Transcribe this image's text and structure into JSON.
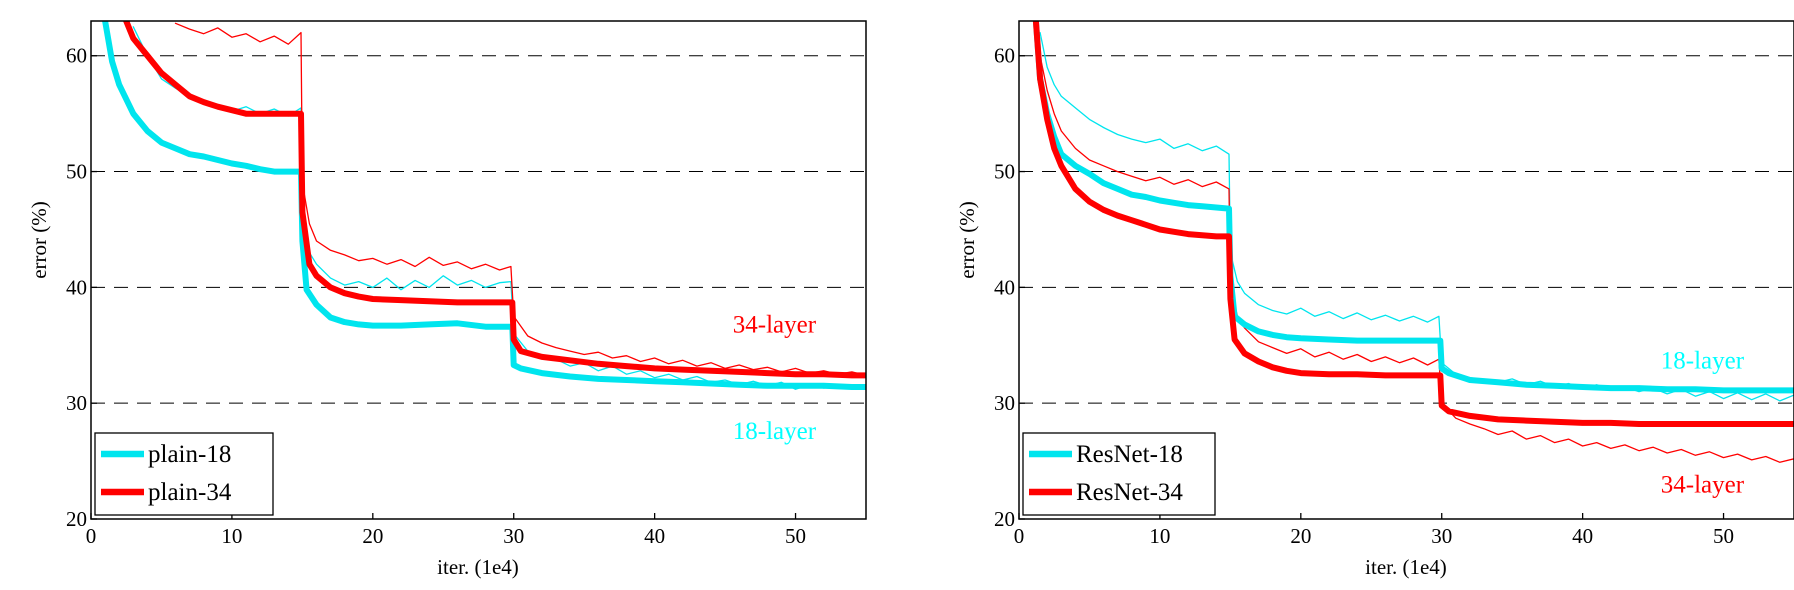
{
  "chart_data": [
    {
      "type": "line",
      "title": "",
      "xlabel": "iter. (1e4)",
      "ylabel": "error (%)",
      "xlim": [
        0,
        55
      ],
      "ylim": [
        20,
        63
      ],
      "xticks": [
        0,
        10,
        20,
        30,
        40,
        50
      ],
      "yticks": [
        20,
        30,
        40,
        50,
        60
      ],
      "grid": "horizontal dashed at 30, 40, 50, 60",
      "legend_position": "bottom-left",
      "legend": [
        "plain-18",
        "plain-34"
      ],
      "annotations": [
        {
          "text": "34-layer",
          "x": 48.5,
          "y": 36.1,
          "color": "#ff0000"
        },
        {
          "text": "18-layer",
          "x": 48.5,
          "y": 26.9,
          "color": "#00ffff"
        }
      ],
      "colors": {
        "18": "#00e5ee",
        "34": "#ff0000"
      },
      "series": [
        {
          "name": "plain-18",
          "kind": "train",
          "color": "#00e5ee",
          "x": [
            1,
            1.5,
            2,
            3,
            4,
            5,
            6,
            7,
            8,
            9,
            10,
            11,
            12,
            13,
            14,
            14.9,
            15,
            15.3,
            16,
            17,
            18,
            19,
            20,
            22,
            24,
            26,
            28,
            29.5,
            29.9,
            30,
            30.5,
            32,
            34,
            36,
            38,
            40,
            42,
            44,
            46,
            48,
            50,
            52,
            54,
            55
          ],
          "y": [
            63,
            59.5,
            57.5,
            55,
            53.5,
            52.5,
            52,
            51.5,
            51.3,
            51,
            50.7,
            50.5,
            50.2,
            50,
            50,
            50,
            44,
            39.8,
            38.5,
            37.4,
            37,
            36.8,
            36.7,
            36.7,
            36.8,
            36.9,
            36.6,
            36.6,
            36.6,
            33.3,
            33,
            32.6,
            32.3,
            32.1,
            32,
            31.9,
            31.8,
            31.7,
            31.6,
            31.5,
            31.5,
            31.5,
            31.4,
            31.4
          ]
        },
        {
          "name": "plain-34",
          "kind": "train",
          "color": "#ff0000",
          "x": [
            2.5,
            3,
            4,
            5,
            6,
            7,
            8,
            9,
            10,
            11,
            12,
            13,
            14,
            14.9,
            15,
            15.5,
            16,
            17,
            18,
            19,
            20,
            22,
            24,
            26,
            28,
            29.5,
            29.9,
            30,
            30.5,
            32,
            34,
            36,
            38,
            40,
            42,
            44,
            46,
            48,
            50,
            52,
            54,
            55
          ],
          "y": [
            63,
            61.5,
            60,
            58.5,
            57.5,
            56.5,
            56,
            55.6,
            55.3,
            55,
            55,
            55,
            55,
            55,
            46.5,
            42,
            41,
            40,
            39.5,
            39.2,
            39,
            38.9,
            38.8,
            38.7,
            38.7,
            38.7,
            38.7,
            35.5,
            34.5,
            34,
            33.7,
            33.4,
            33.2,
            33,
            32.9,
            32.8,
            32.7,
            32.6,
            32.5,
            32.5,
            32.4,
            32.4
          ]
        },
        {
          "name": "plain-18 (val)",
          "kind": "val",
          "color": "#00e5ee",
          "x": [
            3,
            4,
            5,
            6,
            7,
            8,
            9,
            10,
            11,
            12,
            13,
            14,
            14.9,
            15,
            15.5,
            16,
            17,
            18,
            19,
            20,
            21,
            22,
            23,
            24,
            25,
            26,
            27,
            28,
            29,
            29.8,
            30,
            31,
            32,
            33,
            34,
            35,
            36,
            37,
            38,
            39,
            40,
            41,
            42,
            43,
            44,
            45,
            46,
            47,
            48,
            49,
            50,
            51,
            52,
            53,
            54,
            55
          ],
          "y": [
            62.5,
            60,
            58,
            57.2,
            56.5,
            56,
            55.6,
            55.2,
            55.6,
            55,
            55.4,
            54.8,
            55.5,
            47,
            43,
            42,
            40.8,
            40.2,
            40.5,
            40,
            40.8,
            39.8,
            40.6,
            40,
            41,
            40.2,
            40.6,
            40,
            40.4,
            40.5,
            36,
            34.5,
            34,
            33.8,
            33.2,
            33.5,
            32.8,
            33.2,
            32.5,
            32.8,
            32.2,
            32.5,
            32,
            32.3,
            31.8,
            32,
            31.6,
            31.9,
            31.5,
            31.8,
            31.2,
            31.6,
            31.3,
            31.5,
            31.2,
            31.4
          ]
        },
        {
          "name": "plain-34 (val)",
          "kind": "val",
          "color": "#ff0000",
          "x": [
            6,
            7,
            8,
            9,
            10,
            11,
            12,
            13,
            14,
            14.9,
            15,
            15.5,
            16,
            17,
            18,
            19,
            20,
            21,
            22,
            23,
            24,
            25,
            26,
            27,
            28,
            29,
            29.8,
            30,
            31,
            32,
            33,
            34,
            35,
            36,
            37,
            38,
            39,
            40,
            41,
            42,
            43,
            44,
            45,
            46,
            47,
            48,
            49,
            50,
            51,
            52,
            53,
            54,
            55
          ],
          "y": [
            62.8,
            62.3,
            61.9,
            62.4,
            61.6,
            61.9,
            61.2,
            61.7,
            61,
            62,
            49,
            45.5,
            44,
            43.2,
            42.8,
            42.3,
            42.5,
            42,
            42.4,
            41.8,
            42.6,
            41.9,
            42.2,
            41.6,
            42,
            41.5,
            41.8,
            37.5,
            35.8,
            35.2,
            34.8,
            34.5,
            34.2,
            34.4,
            33.9,
            34.1,
            33.6,
            33.9,
            33.4,
            33.7,
            33.2,
            33.5,
            33,
            33.3,
            32.9,
            33.1,
            32.7,
            33,
            32.6,
            32.8,
            32.5,
            32.7,
            32.4
          ]
        }
      ]
    },
    {
      "type": "line",
      "title": "",
      "xlabel": "iter. (1e4)",
      "ylabel": "error (%)",
      "xlim": [
        0,
        55
      ],
      "ylim": [
        20,
        63
      ],
      "xticks": [
        0,
        10,
        20,
        30,
        40,
        50
      ],
      "yticks": [
        20,
        30,
        40,
        50,
        60
      ],
      "grid": "horizontal dashed at 30, 40, 50, 60",
      "legend_position": "bottom-left",
      "legend": [
        "ResNet-18",
        "ResNet-34"
      ],
      "annotations": [
        {
          "text": "18-layer",
          "x": 48.5,
          "y": 33.0,
          "color": "#00ffff"
        },
        {
          "text": "34-layer",
          "x": 48.5,
          "y": 22.3,
          "color": "#ff0000"
        }
      ],
      "colors": {
        "18": "#00e5ee",
        "34": "#ff0000"
      },
      "series": [
        {
          "name": "ResNet-18",
          "kind": "train",
          "color": "#00e5ee",
          "x": [
            1.2,
            1.5,
            2,
            2.5,
            3,
            4,
            5,
            6,
            7,
            8,
            9,
            10,
            11,
            12,
            13,
            14,
            14.9,
            15,
            15.3,
            16,
            17,
            18,
            19,
            20,
            22,
            24,
            26,
            28,
            29.5,
            29.9,
            30,
            30.5,
            32,
            34,
            36,
            38,
            40,
            42,
            44,
            46,
            48,
            50,
            52,
            54,
            55
          ],
          "y": [
            63,
            58,
            55,
            53,
            51.5,
            50.5,
            49.8,
            49,
            48.5,
            48,
            47.8,
            47.5,
            47.3,
            47.1,
            47,
            46.9,
            46.8,
            41,
            37.5,
            36.8,
            36.2,
            35.9,
            35.7,
            35.6,
            35.5,
            35.4,
            35.4,
            35.4,
            35.4,
            35.4,
            33,
            32.6,
            32,
            31.8,
            31.6,
            31.5,
            31.4,
            31.3,
            31.3,
            31.2,
            31.2,
            31.1,
            31.1,
            31.1,
            31.1
          ]
        },
        {
          "name": "ResNet-34",
          "kind": "train",
          "color": "#ff0000",
          "x": [
            1.2,
            1.5,
            2,
            2.5,
            3,
            4,
            5,
            6,
            7,
            8,
            9,
            10,
            11,
            12,
            13,
            14,
            14.9,
            15,
            15.3,
            16,
            17,
            18,
            19,
            20,
            22,
            24,
            26,
            28,
            29.5,
            29.9,
            30,
            30.5,
            32,
            34,
            36,
            38,
            40,
            42,
            44,
            46,
            48,
            50,
            52,
            54,
            55
          ],
          "y": [
            63,
            58,
            54.5,
            52,
            50.5,
            48.5,
            47.4,
            46.7,
            46.2,
            45.8,
            45.4,
            45,
            44.8,
            44.6,
            44.5,
            44.4,
            44.4,
            39,
            35.5,
            34.3,
            33.6,
            33.1,
            32.8,
            32.6,
            32.5,
            32.5,
            32.4,
            32.4,
            32.4,
            32.4,
            29.8,
            29.3,
            28.9,
            28.6,
            28.5,
            28.4,
            28.3,
            28.3,
            28.2,
            28.2,
            28.2,
            28.2,
            28.2,
            28.2,
            28.2
          ]
        },
        {
          "name": "ResNet-18 (val)",
          "kind": "val",
          "color": "#00e5ee",
          "x": [
            1.5,
            2,
            2.5,
            3,
            4,
            5,
            6,
            7,
            8,
            9,
            10,
            11,
            12,
            13,
            14,
            14.9,
            15,
            15.5,
            16,
            17,
            18,
            19,
            20,
            21,
            22,
            23,
            24,
            25,
            26,
            27,
            28,
            29,
            29.8,
            30,
            31,
            32,
            33,
            34,
            35,
            36,
            37,
            38,
            39,
            40,
            41,
            42,
            43,
            44,
            45,
            46,
            47,
            48,
            49,
            50,
            51,
            52,
            53,
            54,
            55
          ],
          "y": [
            62,
            59,
            57.5,
            56.5,
            55.5,
            54.5,
            53.8,
            53.2,
            52.8,
            52.5,
            52.8,
            52,
            52.4,
            51.8,
            52.2,
            51.5,
            43,
            40.5,
            39.5,
            38.5,
            38,
            37.7,
            38.2,
            37.5,
            37.9,
            37.3,
            37.8,
            37.2,
            37.6,
            37.1,
            37.5,
            37,
            37.5,
            33.5,
            32.5,
            32.2,
            32,
            31.8,
            32.1,
            31.6,
            31.9,
            31.4,
            31.7,
            31.3,
            31.6,
            31.1,
            31.4,
            31,
            31.3,
            30.8,
            31.2,
            30.6,
            31,
            30.4,
            30.9,
            30.3,
            30.8,
            30.2,
            30.7
          ]
        },
        {
          "name": "ResNet-34 (val)",
          "kind": "val",
          "color": "#ff0000",
          "x": [
            1.5,
            2,
            2.5,
            3,
            4,
            5,
            6,
            7,
            8,
            9,
            10,
            11,
            12,
            13,
            14,
            14.9,
            15,
            15.5,
            16,
            17,
            18,
            19,
            20,
            21,
            22,
            23,
            24,
            25,
            26,
            27,
            28,
            29,
            29.8,
            30,
            31,
            32,
            33,
            34,
            35,
            36,
            37,
            38,
            39,
            40,
            41,
            42,
            43,
            44,
            45,
            46,
            47,
            48,
            49,
            50,
            51,
            52,
            53,
            54,
            55
          ],
          "y": [
            60,
            57,
            55,
            53.5,
            52,
            51,
            50.5,
            50,
            49.6,
            49.2,
            49.5,
            48.9,
            49.3,
            48.7,
            49.1,
            48.5,
            40,
            37.5,
            36.5,
            35.3,
            34.8,
            34.3,
            34.7,
            34,
            34.4,
            33.8,
            34.2,
            33.6,
            34,
            33.5,
            33.9,
            33.3,
            33.8,
            30,
            28.7,
            28.2,
            27.8,
            27.3,
            27.6,
            26.9,
            27.2,
            26.6,
            26.9,
            26.3,
            26.6,
            26.1,
            26.4,
            25.9,
            26.2,
            25.7,
            26,
            25.5,
            25.8,
            25.3,
            25.6,
            25.1,
            25.4,
            24.9,
            25.2
          ]
        }
      ]
    }
  ]
}
